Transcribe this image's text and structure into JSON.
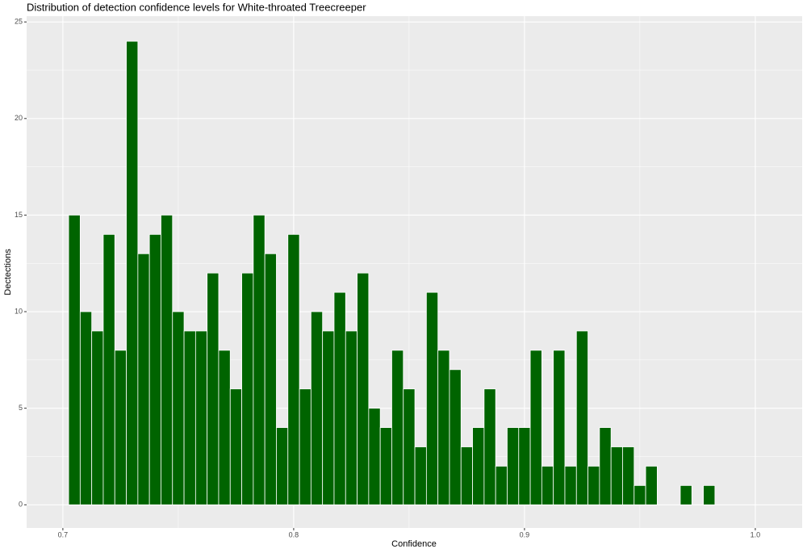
{
  "chart_data": {
    "type": "histogram",
    "title": "Distribution of detection confidence levels for White-throated Treecreeper",
    "x_label": "Confidence",
    "y_label": "Dectections",
    "bins": [
      0.7025,
      0.7075,
      0.7125,
      0.7175,
      0.7225,
      0.7275,
      0.7325,
      0.7375,
      0.7425,
      0.7475,
      0.7525,
      0.7575,
      0.7625,
      0.7675,
      0.7725,
      0.7775,
      0.7825,
      0.7875,
      0.7925,
      0.7975,
      0.8025,
      0.8075,
      0.8125,
      0.8175,
      0.8225,
      0.8275,
      0.8325,
      0.8375,
      0.8425,
      0.8475,
      0.8525,
      0.8575,
      0.8625,
      0.8675,
      0.8725,
      0.8775,
      0.8825,
      0.8875,
      0.8925,
      0.8975,
      0.9025,
      0.9075,
      0.9125,
      0.9175,
      0.9225,
      0.9275,
      0.9325,
      0.9375,
      0.9425,
      0.9475,
      0.9525,
      0.9575,
      0.9625,
      0.9675,
      0.9725,
      0.9775,
      0.9825
    ],
    "values": [
      15,
      10,
      9,
      14,
      8,
      24,
      13,
      14,
      15,
      10,
      9,
      9,
      12,
      8,
      6,
      12,
      15,
      13,
      4,
      14,
      6,
      10,
      9,
      11,
      9,
      12,
      5,
      4,
      8,
      6,
      3,
      11,
      8,
      7,
      3,
      4,
      6,
      2,
      4,
      4,
      8,
      2,
      8,
      2,
      9,
      2,
      4,
      3,
      3,
      1,
      2,
      0,
      0,
      1,
      0,
      1
    ],
    "color": "#006400",
    "xlim": [
      0.6843,
      1.0203
    ],
    "xticks": [
      0.7,
      0.8,
      0.9,
      {
        "value": 1,
        "label": "1.0"
      }
    ],
    "x_minor_ticks": [
      0.75,
      0.85,
      0.95
    ],
    "ylim": [
      -1.2,
      25.3
    ],
    "yticks": [
      0,
      5,
      10,
      15,
      20,
      25
    ],
    "y_minor_ticks": [
      2.5,
      7.5,
      12.5,
      17.5,
      22.5
    ],
    "grid": true
  }
}
